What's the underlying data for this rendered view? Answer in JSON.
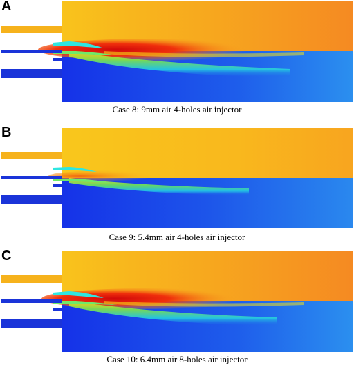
{
  "panels": [
    {
      "letter": "A",
      "caption": "Case 8: 9mm air 4-holes air injector"
    },
    {
      "letter": "B",
      "caption": "Case 9: 5.4mm air 4-holes air injector"
    },
    {
      "letter": "C",
      "caption": "Case 10: 6.4mm air 8-holes air injector"
    }
  ],
  "colors": {
    "upper_stream": "#F9A61E",
    "hot_core": "#E8140C",
    "lower_stream": "#1B45E6",
    "air_jet": "#2EE6E0",
    "inlet_pipe": "#1A34D9",
    "fuel_pipe": "#F6B21C"
  }
}
